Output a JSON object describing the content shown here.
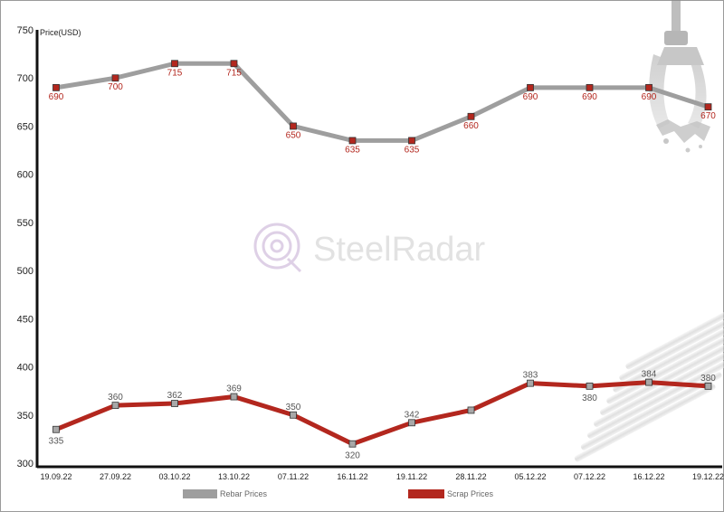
{
  "chart_data": {
    "type": "line",
    "categories": [
      "19.09.22",
      "27.09.22",
      "03.10.22",
      "13.10.22",
      "07.11.22",
      "16.11.22",
      "19.11.22",
      "28.11.22",
      "05.12.22",
      "07.12.22",
      "16.12.22",
      "19.12.22"
    ],
    "series": [
      {
        "name": "Rebar Prices",
        "color": "#9e9e9e",
        "marker_color": "#b3271e",
        "values": [
          690,
          700,
          715,
          715,
          650,
          635,
          635,
          660,
          690,
          690,
          690,
          670
        ],
        "labels": [
          "690",
          "700",
          "715",
          "715",
          "650",
          "635",
          "635",
          "660",
          "690",
          "690",
          "690",
          "670"
        ]
      },
      {
        "name": "Scrap Prices",
        "color": "#b3271e",
        "marker_color": "#a8a8a8",
        "values": [
          335,
          360,
          362,
          369,
          350,
          320,
          342,
          355,
          383,
          380,
          384,
          380
        ],
        "labels": [
          "335",
          "360",
          "362",
          "369",
          "350",
          "320",
          "342",
          "",
          "383",
          "380",
          "384",
          "380"
        ]
      }
    ],
    "y_ticks": [
      300,
      350,
      400,
      450,
      500,
      550,
      600,
      650,
      700,
      750
    ],
    "ylim": [
      300,
      750
    ],
    "ylabel": "Price(USD)",
    "xlabel": "",
    "grid": false,
    "legend_position": "bottom"
  },
  "watermark": "SteelRadar"
}
